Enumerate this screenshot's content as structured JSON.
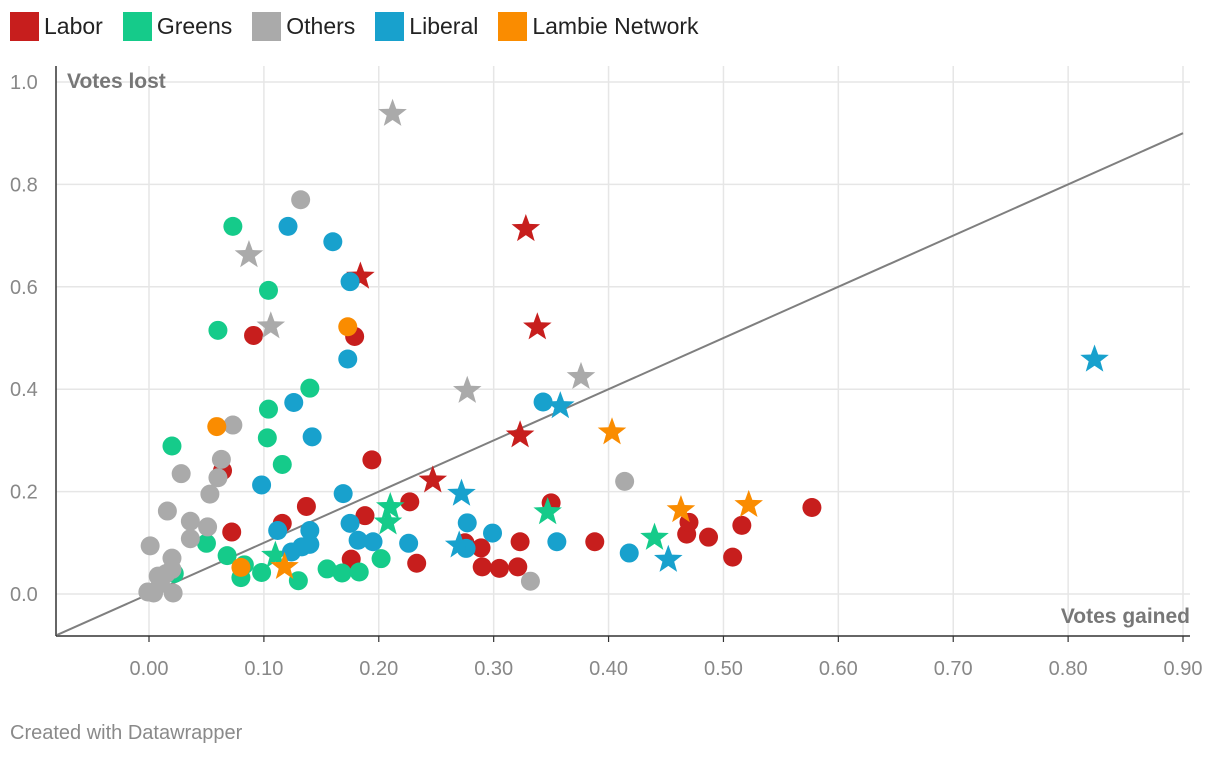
{
  "chart_data": {
    "type": "scatter",
    "title": "",
    "xlabel": "Votes gained",
    "ylabel": "Votes lost",
    "xlim": [
      -0.08,
      0.9
    ],
    "ylim": [
      -0.08,
      1.02
    ],
    "xticks": [
      "0.00",
      "0.10",
      "0.20",
      "0.30",
      "0.40",
      "0.50",
      "0.60",
      "0.70",
      "0.80",
      "0.90"
    ],
    "xtick_values": [
      0,
      0.1,
      0.2,
      0.3,
      0.4,
      0.5,
      0.6,
      0.7,
      0.8,
      0.9
    ],
    "yticks": [
      "0.0",
      "0.2",
      "0.4",
      "0.6",
      "0.8",
      "1.0"
    ],
    "ytick_values": [
      0,
      0.2,
      0.4,
      0.6,
      0.8,
      1.0
    ],
    "grid": true,
    "legend_position": "top-left",
    "reference_line": {
      "from": [
        -0.08,
        -0.08
      ],
      "to": [
        0.9,
        0.9
      ]
    },
    "series": [
      {
        "name": "Labor",
        "color": "#c71e1d",
        "points": [
          {
            "x": 0.091,
            "y": 0.505
          },
          {
            "x": 0.179,
            "y": 0.503
          },
          {
            "x": 0.194,
            "y": 0.262
          },
          {
            "x": 0.064,
            "y": 0.241
          },
          {
            "x": 0.072,
            "y": 0.121
          },
          {
            "x": 0.116,
            "y": 0.138
          },
          {
            "x": 0.137,
            "y": 0.171
          },
          {
            "x": 0.188,
            "y": 0.153
          },
          {
            "x": 0.227,
            "y": 0.18
          },
          {
            "x": 0.233,
            "y": 0.06
          },
          {
            "x": 0.176,
            "y": 0.068
          },
          {
            "x": 0.275,
            "y": 0.1
          },
          {
            "x": 0.289,
            "y": 0.09
          },
          {
            "x": 0.29,
            "y": 0.053
          },
          {
            "x": 0.305,
            "y": 0.05
          },
          {
            "x": 0.321,
            "y": 0.053
          },
          {
            "x": 0.323,
            "y": 0.102
          },
          {
            "x": 0.35,
            "y": 0.178
          },
          {
            "x": 0.388,
            "y": 0.102
          },
          {
            "x": 0.468,
            "y": 0.117
          },
          {
            "x": 0.47,
            "y": 0.14
          },
          {
            "x": 0.487,
            "y": 0.111
          },
          {
            "x": 0.508,
            "y": 0.072
          },
          {
            "x": 0.516,
            "y": 0.134
          },
          {
            "x": 0.577,
            "y": 0.169
          }
        ],
        "stars": [
          {
            "x": 0.328,
            "y": 0.713
          },
          {
            "x": 0.184,
            "y": 0.62
          },
          {
            "x": 0.338,
            "y": 0.521
          },
          {
            "x": 0.323,
            "y": 0.31
          },
          {
            "x": 0.247,
            "y": 0.222
          }
        ]
      },
      {
        "name": "Greens",
        "color": "#15cb8a",
        "points": [
          {
            "x": 0.073,
            "y": 0.718
          },
          {
            "x": 0.104,
            "y": 0.593
          },
          {
            "x": 0.06,
            "y": 0.515
          },
          {
            "x": 0.14,
            "y": 0.402
          },
          {
            "x": 0.104,
            "y": 0.361
          },
          {
            "x": 0.103,
            "y": 0.305
          },
          {
            "x": 0.02,
            "y": 0.289
          },
          {
            "x": 0.116,
            "y": 0.253
          },
          {
            "x": 0.05,
            "y": 0.099
          },
          {
            "x": 0.068,
            "y": 0.075
          },
          {
            "x": 0.022,
            "y": 0.04
          },
          {
            "x": 0.08,
            "y": 0.032
          },
          {
            "x": 0.083,
            "y": 0.057
          },
          {
            "x": 0.098,
            "y": 0.042
          },
          {
            "x": 0.13,
            "y": 0.026
          },
          {
            "x": 0.155,
            "y": 0.049
          },
          {
            "x": 0.168,
            "y": 0.041
          },
          {
            "x": 0.183,
            "y": 0.043
          },
          {
            "x": 0.202,
            "y": 0.069
          }
        ],
        "stars": [
          {
            "x": 0.21,
            "y": 0.17
          },
          {
            "x": 0.208,
            "y": 0.14
          },
          {
            "x": 0.347,
            "y": 0.16
          },
          {
            "x": 0.44,
            "y": 0.11
          },
          {
            "x": 0.11,
            "y": 0.075
          }
        ]
      },
      {
        "name": "Others",
        "color": "#aaaaaa",
        "points": [
          {
            "x": 0.132,
            "y": 0.77
          },
          {
            "x": 0.073,
            "y": 0.33
          },
          {
            "x": 0.063,
            "y": 0.263
          },
          {
            "x": 0.028,
            "y": 0.235
          },
          {
            "x": 0.06,
            "y": 0.227
          },
          {
            "x": 0.053,
            "y": 0.195
          },
          {
            "x": 0.016,
            "y": 0.162
          },
          {
            "x": 0.036,
            "y": 0.142
          },
          {
            "x": 0.051,
            "y": 0.131
          },
          {
            "x": 0.036,
            "y": 0.108
          },
          {
            "x": 0.001,
            "y": 0.094
          },
          {
            "x": 0.02,
            "y": 0.07
          },
          {
            "x": 0.008,
            "y": 0.035
          },
          {
            "x": 0.015,
            "y": 0.04
          },
          {
            "x": 0.02,
            "y": 0.048
          },
          {
            "x": 0.01,
            "y": 0.02
          },
          {
            "x": -0.001,
            "y": 0.004
          },
          {
            "x": 0.004,
            "y": 0.002
          },
          {
            "x": 0.021,
            "y": 0.002
          },
          {
            "x": 0.414,
            "y": 0.22
          },
          {
            "x": 0.332,
            "y": 0.025
          }
        ],
        "stars": [
          {
            "x": 0.212,
            "y": 0.938
          },
          {
            "x": 0.087,
            "y": 0.662
          },
          {
            "x": 0.106,
            "y": 0.523
          },
          {
            "x": 0.277,
            "y": 0.397
          },
          {
            "x": 0.376,
            "y": 0.424
          }
        ]
      },
      {
        "name": "Liberal",
        "color": "#18a1cd",
        "points": [
          {
            "x": 0.121,
            "y": 0.718
          },
          {
            "x": 0.16,
            "y": 0.688
          },
          {
            "x": 0.175,
            "y": 0.61
          },
          {
            "x": 0.173,
            "y": 0.459
          },
          {
            "x": 0.126,
            "y": 0.374
          },
          {
            "x": 0.142,
            "y": 0.307
          },
          {
            "x": 0.098,
            "y": 0.213
          },
          {
            "x": 0.169,
            "y": 0.196
          },
          {
            "x": 0.112,
            "y": 0.124
          },
          {
            "x": 0.175,
            "y": 0.138
          },
          {
            "x": 0.14,
            "y": 0.124
          },
          {
            "x": 0.14,
            "y": 0.097
          },
          {
            "x": 0.124,
            "y": 0.082
          },
          {
            "x": 0.133,
            "y": 0.092
          },
          {
            "x": 0.182,
            "y": 0.105
          },
          {
            "x": 0.195,
            "y": 0.102
          },
          {
            "x": 0.226,
            "y": 0.099
          },
          {
            "x": 0.277,
            "y": 0.139
          },
          {
            "x": 0.276,
            "y": 0.089
          },
          {
            "x": 0.299,
            "y": 0.119
          },
          {
            "x": 0.343,
            "y": 0.375
          },
          {
            "x": 0.355,
            "y": 0.102
          },
          {
            "x": 0.418,
            "y": 0.08
          }
        ],
        "stars": [
          {
            "x": 0.823,
            "y": 0.458
          },
          {
            "x": 0.358,
            "y": 0.367
          },
          {
            "x": 0.272,
            "y": 0.196
          },
          {
            "x": 0.27,
            "y": 0.095
          },
          {
            "x": 0.452,
            "y": 0.067
          }
        ]
      },
      {
        "name": "Lambie Network",
        "color": "#fa8c00",
        "points": [
          {
            "x": 0.173,
            "y": 0.522
          },
          {
            "x": 0.059,
            "y": 0.327
          },
          {
            "x": 0.08,
            "y": 0.052
          }
        ],
        "stars": [
          {
            "x": 0.403,
            "y": 0.316
          },
          {
            "x": 0.522,
            "y": 0.174
          },
          {
            "x": 0.463,
            "y": 0.164
          },
          {
            "x": 0.118,
            "y": 0.053
          }
        ]
      }
    ]
  },
  "footer": {
    "credit": "Created with Datawrapper"
  }
}
